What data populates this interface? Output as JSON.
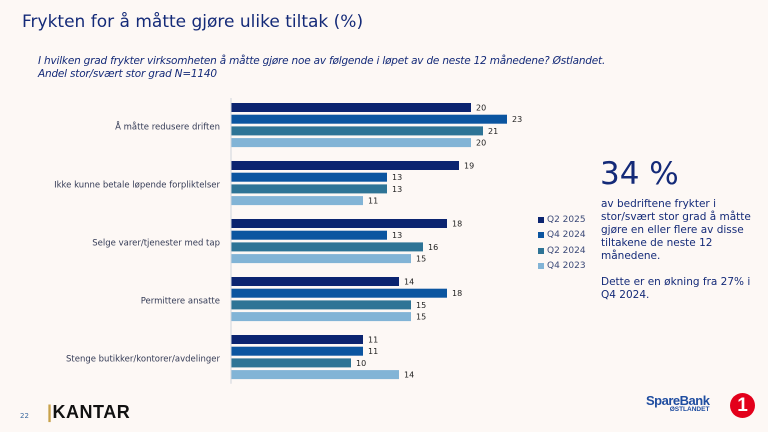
{
  "title": "Frykten for å måtte gjøre ulike tiltak (%)",
  "subtitle_line1": "I hvilken grad frykter virksomheten å måtte gjøre noe av følgende i løpet av de neste 12 månedene? Østlandet.",
  "subtitle_line2": "Andel stor/svært stor grad  N=1140",
  "chart_data": {
    "type": "bar",
    "orientation": "horizontal",
    "categories": [
      "Å måtte redusere driften",
      "Ikke kunne betale løpende forpliktelser",
      "Selge varer/tjenester med tap",
      "Permittere ansatte",
      "Stenge butikker/kontorer/avdelinger"
    ],
    "series": [
      {
        "name": "Q2 2025",
        "color": "#0b2470",
        "values": [
          20,
          19,
          18,
          14,
          11
        ]
      },
      {
        "name": "Q4 2024",
        "color": "#0b55a0",
        "values": [
          23,
          13,
          13,
          18,
          11
        ]
      },
      {
        "name": "Q2 2024",
        "color": "#2e7496",
        "values": [
          21,
          13,
          16,
          15,
          10
        ]
      },
      {
        "name": "Q4 2023",
        "color": "#82b4d6",
        "values": [
          20,
          11,
          15,
          15,
          14
        ]
      }
    ],
    "data_labels": true,
    "grid": false,
    "legend_placement": "right"
  },
  "highlight": {
    "value": "34 %",
    "text": "av bedriftene frykter i stor/svært stor grad å måtte gjøre en eller flere av disse tiltakene de neste 12 månedene.",
    "note": "Dette er en økning fra 27% i Q4 2024."
  },
  "footer": {
    "page_number": "22",
    "kantar_logo": "KANTAR",
    "bank_logo_name": "SpareBank",
    "bank_logo_region": "ØSTLANDET",
    "bank_logo_mark": "1"
  }
}
